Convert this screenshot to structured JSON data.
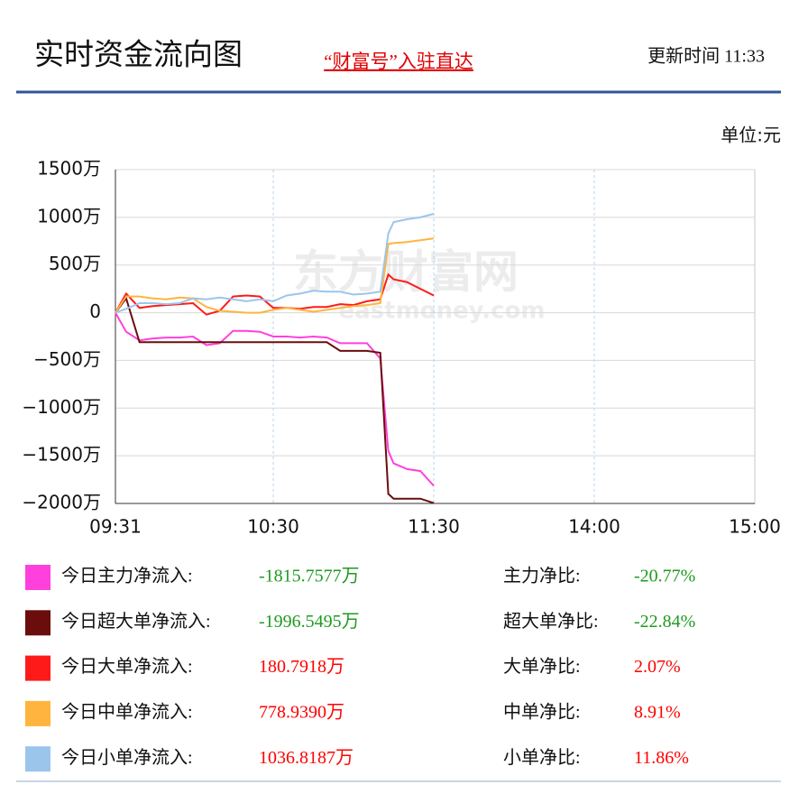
{
  "header": {
    "title": "实时资金流向图",
    "link": "“财富号”入驻直达",
    "update": "更新时间 11:33"
  },
  "chart_data": {
    "type": "line",
    "unit": "单位:元",
    "watermark": [
      "东方财富网",
      "eastmoney.com"
    ],
    "x": [
      "09:31",
      "09:35",
      "09:40",
      "09:45",
      "09:50",
      "09:55",
      "10:00",
      "10:05",
      "10:10",
      "10:15",
      "10:20",
      "10:25",
      "10:30",
      "10:35",
      "10:40",
      "10:45",
      "10:50",
      "10:55",
      "11:00",
      "11:05",
      "11:10",
      "11:13",
      "11:15",
      "11:20",
      "11:25",
      "11:30"
    ],
    "xlim": [
      "09:31",
      "15:00"
    ],
    "xticks": [
      "09:31",
      "10:30",
      "11:30",
      "14:00",
      "15:00"
    ],
    "ylim": [
      -2000,
      1500
    ],
    "yticks": [
      {
        "value": -2000,
        "label": "−2000万"
      },
      {
        "value": -1500,
        "label": "−1500万"
      },
      {
        "value": -1000,
        "label": "−1000万"
      },
      {
        "value": -500,
        "label": "−500万"
      },
      0,
      {
        "value": 500,
        "label": "500万"
      },
      {
        "value": 1000,
        "label": "1000万"
      },
      {
        "value": 1500,
        "label": "1500万"
      }
    ],
    "grid": true,
    "series": [
      {
        "name": "今日主力净流入:",
        "color": "#ff40dc",
        "values": [
          0,
          -200,
          -290,
          -270,
          -260,
          -260,
          -250,
          -340,
          -320,
          -190,
          -190,
          -200,
          -250,
          -250,
          -260,
          -250,
          -260,
          -320,
          -320,
          -320,
          -480,
          -1450,
          -1580,
          -1640,
          -1660,
          -1815.7577
        ]
      },
      {
        "name": "今日超大单净流入:",
        "color": "#6b0d0d",
        "values": [
          0,
          150,
          -310,
          -310,
          -310,
          -310,
          -310,
          -310,
          -310,
          -310,
          -310,
          -310,
          -310,
          -310,
          -310,
          -310,
          -310,
          -400,
          -400,
          -400,
          -420,
          -1900,
          -1950,
          -1950,
          -1950,
          -1996.5495
        ]
      },
      {
        "name": "今日大单净流入:",
        "color": "#ff1a1a",
        "values": [
          0,
          200,
          50,
          70,
          80,
          90,
          100,
          -20,
          20,
          170,
          180,
          170,
          50,
          50,
          40,
          60,
          60,
          90,
          80,
          120,
          140,
          400,
          350,
          320,
          250,
          180.7918
        ]
      },
      {
        "name": "今日中单净流入:",
        "color": "#ffb43f",
        "values": [
          0,
          170,
          170,
          150,
          140,
          160,
          150,
          60,
          20,
          10,
          0,
          0,
          30,
          50,
          30,
          10,
          30,
          50,
          70,
          80,
          100,
          720,
          730,
          740,
          760,
          778.939
        ]
      },
      {
        "name": "今日小单净流入:",
        "color": "#9cc5ec",
        "values": [
          0,
          40,
          100,
          100,
          90,
          100,
          150,
          140,
          160,
          140,
          120,
          140,
          120,
          180,
          200,
          230,
          220,
          220,
          190,
          200,
          220,
          830,
          950,
          980,
          1000,
          1036.8187
        ]
      }
    ]
  },
  "summary": {
    "rows": [
      {
        "value": "-1815.7577万",
        "ratio_name": "主力净比:",
        "ratio": "-20.77%"
      },
      {
        "value": "-1996.5495万",
        "ratio_name": "超大单净比:",
        "ratio": "-22.84%"
      },
      {
        "value": "180.7918万",
        "ratio_name": "大单净比:",
        "ratio": "2.07%"
      },
      {
        "value": "778.9390万",
        "ratio_name": "中单净比:",
        "ratio": "8.91%"
      },
      {
        "value": "1036.8187万",
        "ratio_name": "小单净比:",
        "ratio": "11.86%"
      }
    ]
  }
}
